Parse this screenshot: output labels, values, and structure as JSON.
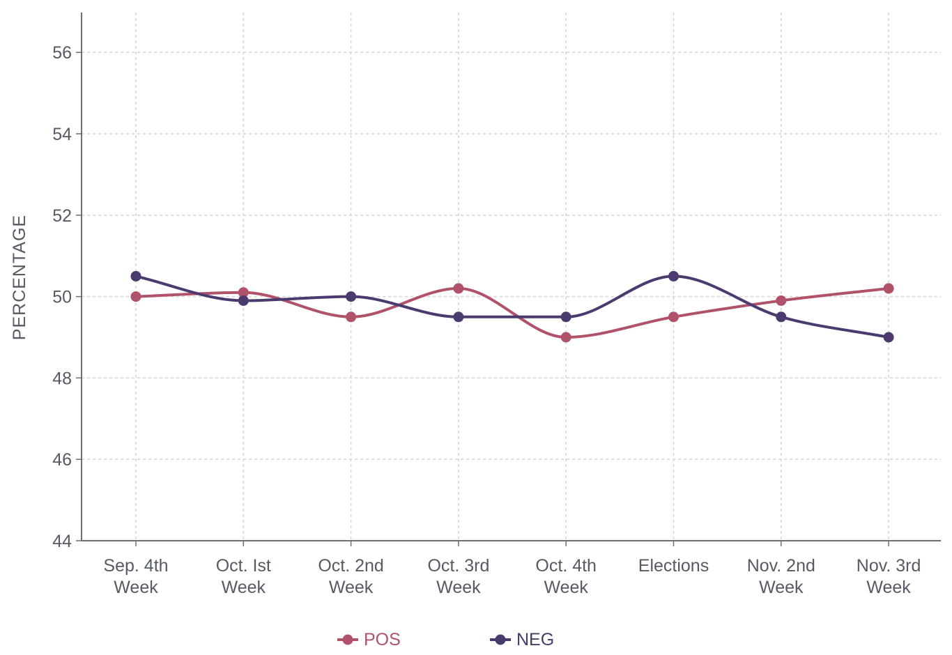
{
  "chart_data": {
    "type": "line",
    "title": "",
    "xlabel": "",
    "ylabel": "PERCENTAGE",
    "ylim": [
      44,
      57
    ],
    "yticks": [
      44,
      46,
      48,
      50,
      52,
      54,
      56
    ],
    "grid": true,
    "smooth": true,
    "legend_position": "bottom",
    "categories": [
      [
        "Sep. 4th",
        "Week"
      ],
      [
        "Oct. Ist",
        "Week"
      ],
      [
        "Oct. 2nd",
        "Week"
      ],
      [
        "Oct. 3rd",
        "Week"
      ],
      [
        "Oct. 4th",
        "Week"
      ],
      [
        "Elections"
      ],
      [
        "Nov. 2nd",
        "Week"
      ],
      [
        "Nov. 3rd",
        "Week"
      ]
    ],
    "series": [
      {
        "name": "POS",
        "color": "#b0526a",
        "values": [
          50.0,
          50.1,
          49.5,
          50.2,
          49.0,
          49.5,
          49.9,
          50.2
        ]
      },
      {
        "name": "NEG",
        "color": "#4b3a6e",
        "values": [
          50.5,
          49.9,
          50.0,
          49.5,
          49.5,
          50.5,
          49.5,
          49.0
        ]
      }
    ]
  },
  "colors": {
    "axis": "#6b6f75",
    "grid": "#d4d4d4",
    "text": "#555a63"
  }
}
